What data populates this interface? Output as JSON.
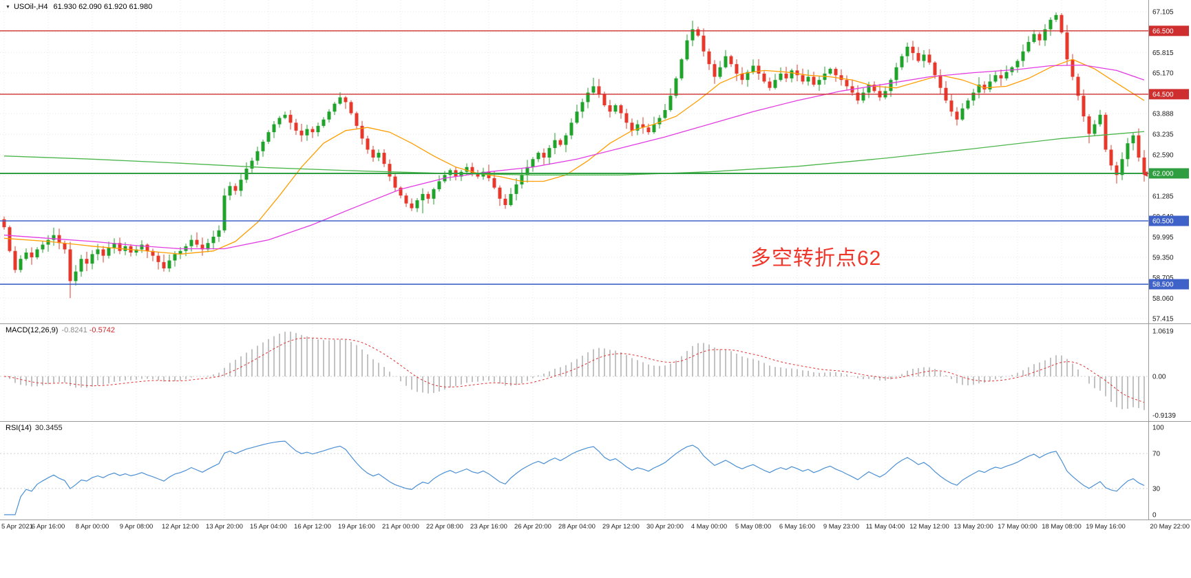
{
  "header": {
    "collapse_icon": "▼",
    "symbol": "USOil-,H4",
    "ohlc": "61.930 62.090 61.920 61.980"
  },
  "annotation": {
    "text": "多空转折点62",
    "color": "#f0352b"
  },
  "macd": {
    "label": "MACD(12,26,9)",
    "value_main": "-0.8241",
    "value_signal": "-0.5742"
  },
  "rsi": {
    "label": "RSI(14)",
    "value": "30.3455"
  },
  "chart_data": {
    "type": "candlestick-with-indicators",
    "symbol": "USOil-",
    "timeframe": "H4",
    "current_price": 61.98,
    "ohlc_display": {
      "open": "61.930",
      "high": "62.090",
      "low": "61.920",
      "close": "61.980"
    },
    "bars_per_label": 8,
    "x_labels": [
      "5 Apr 2021",
      "6 Apr 16:00",
      "8 Apr 00:00",
      "9 Apr 08:00",
      "12 Apr 12:00",
      "13 Apr 20:00",
      "15 Apr 04:00",
      "16 Apr 12:00",
      "19 Apr 16:00",
      "21 Apr 00:00",
      "22 Apr 08:00",
      "23 Apr 16:00",
      "26 Apr 20:00",
      "28 Apr 04:00",
      "29 Apr 12:00",
      "30 Apr 20:00",
      "4 May 00:00",
      "5 May 08:00",
      "6 May 16:00",
      "9 May 23:00",
      "11 May 04:00",
      "12 May 12:00",
      "13 May 20:00",
      "17 May 00:00",
      "18 May 08:00",
      "19 May 16:00",
      "20 May 22:00"
    ],
    "price_axis": {
      "labels": [
        "67.105",
        "65.815",
        "65.170",
        "63.888",
        "63.235",
        "62.590",
        "61.285",
        "60.640",
        "59.995",
        "59.350",
        "58.705",
        "58.060",
        "57.415"
      ],
      "grid_ticks": [
        67.105,
        66.46,
        65.815,
        65.17,
        64.525,
        63.888,
        63.235,
        62.59,
        61.93,
        61.285,
        60.64,
        59.995,
        59.35,
        58.705,
        58.06,
        57.415
      ]
    },
    "h_lines": [
      {
        "price": 66.5,
        "label": "66.500",
        "color": "#cf2e2e",
        "width": 1.4
      },
      {
        "price": 64.5,
        "label": "64.500",
        "color": "#cf2e2e",
        "width": 1.4
      },
      {
        "price": 62.0,
        "label": "62.000",
        "color": "#2f9e41",
        "width": 2
      },
      {
        "price": 60.5,
        "label": "60.500",
        "color": "#3f62c9",
        "width": 1.6
      },
      {
        "price": 58.5,
        "label": "58.500",
        "color": "#3f62c9",
        "width": 1.6
      }
    ],
    "candles": {
      "first_open": 60.55,
      "closes": [
        60.3,
        59.55,
        58.95,
        59.3,
        59.5,
        59.35,
        59.6,
        59.75,
        59.9,
        60.05,
        59.8,
        59.6,
        58.6,
        58.9,
        59.3,
        59.15,
        59.45,
        59.6,
        59.4,
        59.65,
        59.8,
        59.55,
        59.7,
        59.5,
        59.6,
        59.75,
        59.55,
        59.4,
        59.2,
        59.0,
        59.25,
        59.45,
        59.55,
        59.7,
        59.9,
        59.75,
        59.6,
        59.8,
        60.0,
        60.2,
        61.3,
        61.6,
        61.45,
        61.8,
        62.15,
        62.4,
        62.7,
        63.0,
        63.3,
        63.55,
        63.75,
        63.85,
        63.6,
        63.35,
        63.2,
        63.4,
        63.3,
        63.5,
        63.7,
        63.95,
        64.2,
        64.4,
        64.25,
        63.9,
        63.5,
        63.1,
        62.75,
        62.5,
        62.65,
        62.3,
        61.9,
        61.55,
        61.3,
        61.05,
        60.9,
        61.15,
        61.35,
        61.2,
        61.5,
        61.75,
        61.95,
        62.1,
        61.9,
        62.05,
        62.2,
        62.0,
        61.9,
        62.05,
        61.85,
        61.55,
        61.2,
        61.0,
        61.35,
        61.65,
        61.95,
        62.2,
        62.45,
        62.65,
        62.5,
        62.8,
        63.05,
        62.9,
        63.2,
        63.6,
        63.95,
        64.25,
        64.55,
        64.75,
        64.5,
        64.15,
        63.95,
        64.15,
        63.9,
        63.6,
        63.35,
        63.55,
        63.45,
        63.3,
        63.55,
        63.75,
        64.0,
        64.45,
        65.0,
        65.6,
        66.2,
        66.55,
        66.35,
        65.85,
        65.45,
        65.05,
        65.35,
        65.7,
        65.45,
        65.15,
        64.95,
        65.2,
        65.4,
        65.15,
        64.9,
        64.7,
        64.95,
        65.15,
        65.0,
        65.25,
        65.1,
        64.9,
        65.05,
        64.8,
        64.95,
        65.15,
        65.3,
        65.1,
        64.95,
        64.75,
        64.55,
        64.3,
        64.55,
        64.8,
        64.6,
        64.4,
        64.6,
        64.95,
        65.35,
        65.7,
        66.0,
        65.8,
        65.55,
        65.75,
        65.5,
        65.1,
        64.7,
        64.3,
        63.95,
        63.7,
        64.05,
        64.3,
        64.55,
        64.8,
        64.65,
        64.9,
        65.1,
        65.0,
        65.2,
        65.35,
        65.55,
        65.85,
        66.15,
        66.4,
        66.2,
        66.55,
        66.85,
        67.0,
        66.45,
        65.6,
        65.05,
        64.45,
        63.8,
        63.25,
        63.55,
        63.85,
        62.75,
        62.25,
        61.95,
        62.45,
        62.95,
        63.2,
        62.5,
        61.98
      ],
      "overrides": {
        "0": {
          "high": 60.64
        },
        "12": {
          "low": 58.06
        },
        "51": {
          "high": 63.95
        },
        "61": {
          "high": 64.56
        },
        "76": {
          "low": 60.74
        },
        "91": {
          "low": 60.88
        },
        "107": {
          "high": 65.02
        },
        "125": {
          "high": 66.82
        },
        "191": {
          "high": 67.08
        },
        "197": {
          "low": 62.95
        },
        "202": {
          "low": 61.68
        },
        "207": {
          "low": 61.74
        }
      }
    },
    "moving_averages": [
      {
        "name": "ma-fast-orange",
        "color": "#ff9d00",
        "points": [
          [
            0,
            59.95
          ],
          [
            8,
            59.85
          ],
          [
            16,
            59.7
          ],
          [
            24,
            59.58
          ],
          [
            32,
            59.45
          ],
          [
            38,
            59.55
          ],
          [
            42,
            59.85
          ],
          [
            46,
            60.45
          ],
          [
            50,
            61.3
          ],
          [
            54,
            62.2
          ],
          [
            58,
            62.95
          ],
          [
            62,
            63.35
          ],
          [
            66,
            63.45
          ],
          [
            70,
            63.3
          ],
          [
            74,
            62.95
          ],
          [
            78,
            62.55
          ],
          [
            82,
            62.2
          ],
          [
            86,
            62.0
          ],
          [
            90,
            61.9
          ],
          [
            94,
            61.75
          ],
          [
            98,
            61.75
          ],
          [
            102,
            61.95
          ],
          [
            106,
            62.4
          ],
          [
            110,
            62.95
          ],
          [
            114,
            63.35
          ],
          [
            118,
            63.55
          ],
          [
            122,
            63.8
          ],
          [
            126,
            64.3
          ],
          [
            130,
            64.85
          ],
          [
            134,
            65.15
          ],
          [
            138,
            65.25
          ],
          [
            142,
            65.2
          ],
          [
            146,
            65.1
          ],
          [
            150,
            65.05
          ],
          [
            154,
            64.95
          ],
          [
            158,
            64.75
          ],
          [
            162,
            64.7
          ],
          [
            166,
            64.9
          ],
          [
            170,
            65.1
          ],
          [
            174,
            64.95
          ],
          [
            178,
            64.7
          ],
          [
            182,
            64.75
          ],
          [
            186,
            65.0
          ],
          [
            190,
            65.35
          ],
          [
            194,
            65.6
          ],
          [
            198,
            65.3
          ],
          [
            202,
            64.85
          ],
          [
            207,
            64.3
          ]
        ]
      },
      {
        "name": "ma-mid-magenta",
        "color": "#e23ce2",
        "points": [
          [
            0,
            60.05
          ],
          [
            8,
            59.95
          ],
          [
            16,
            59.85
          ],
          [
            24,
            59.72
          ],
          [
            32,
            59.62
          ],
          [
            40,
            59.62
          ],
          [
            48,
            59.9
          ],
          [
            56,
            60.38
          ],
          [
            64,
            60.95
          ],
          [
            72,
            61.5
          ],
          [
            80,
            61.85
          ],
          [
            88,
            62.05
          ],
          [
            96,
            62.2
          ],
          [
            104,
            62.45
          ],
          [
            112,
            62.8
          ],
          [
            120,
            63.15
          ],
          [
            128,
            63.55
          ],
          [
            136,
            63.95
          ],
          [
            144,
            64.3
          ],
          [
            152,
            64.6
          ],
          [
            160,
            64.82
          ],
          [
            168,
            65.05
          ],
          [
            176,
            65.18
          ],
          [
            184,
            65.28
          ],
          [
            190,
            65.4
          ],
          [
            196,
            65.42
          ],
          [
            202,
            65.25
          ],
          [
            207,
            64.95
          ]
        ]
      },
      {
        "name": "ma-slow-green",
        "color": "#4bb64b",
        "points": [
          [
            0,
            62.55
          ],
          [
            16,
            62.45
          ],
          [
            32,
            62.32
          ],
          [
            48,
            62.18
          ],
          [
            64,
            62.08
          ],
          [
            80,
            62.0
          ],
          [
            96,
            61.95
          ],
          [
            112,
            61.95
          ],
          [
            128,
            62.05
          ],
          [
            144,
            62.22
          ],
          [
            160,
            62.48
          ],
          [
            176,
            62.78
          ],
          [
            192,
            63.1
          ],
          [
            207,
            63.32
          ]
        ]
      }
    ],
    "macd": {
      "params": [
        12,
        26,
        9
      ],
      "axis": [
        {
          "label": "1.0619",
          "value": 1.0619
        },
        {
          "label": "0.00",
          "value": 0
        },
        {
          "label": "-0.9139",
          "value": -0.9139
        }
      ]
    },
    "rsi": {
      "period": 14,
      "levels": [
        70,
        30
      ],
      "axis": [
        {
          "label": "100",
          "value": 100
        },
        {
          "label": "70",
          "value": 70
        },
        {
          "label": "30",
          "value": 30
        },
        {
          "label": "0",
          "value": 0
        }
      ]
    },
    "colors": {
      "up": "#1fa32a",
      "down": "#e6392c",
      "macd_hist": "#c2c2c2",
      "macd_signal": "#e03131",
      "rsi_line": "#4a8fd4",
      "grid": "#e7e7e7",
      "axis_text": "#1a1a1a"
    }
  }
}
